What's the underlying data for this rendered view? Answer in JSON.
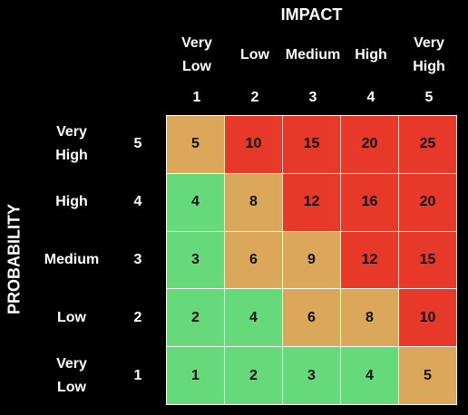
{
  "impact_title": "IMPACT",
  "probability_title": "PROBABILITY",
  "columns": [
    {
      "label": "Very\nLow",
      "num": "1"
    },
    {
      "label": "Low",
      "num": "2"
    },
    {
      "label": "Medium",
      "num": "3"
    },
    {
      "label": "High",
      "num": "4"
    },
    {
      "label": "Very\nHigh",
      "num": "5"
    }
  ],
  "rows": [
    {
      "label": "Very\nHigh",
      "num": "5"
    },
    {
      "label": "High",
      "num": "4"
    },
    {
      "label": "Medium",
      "num": "3"
    },
    {
      "label": "Low",
      "num": "2"
    },
    {
      "label": "Very\nLow",
      "num": "1"
    }
  ],
  "colors": {
    "low": "#66d97a",
    "medium": "#dba75a",
    "high": "#e8382a"
  },
  "matrix": [
    [
      {
        "v": "5",
        "level": "medium"
      },
      {
        "v": "10",
        "level": "high"
      },
      {
        "v": "15",
        "level": "high"
      },
      {
        "v": "20",
        "level": "high"
      },
      {
        "v": "25",
        "level": "high"
      }
    ],
    [
      {
        "v": "4",
        "level": "low"
      },
      {
        "v": "8",
        "level": "medium"
      },
      {
        "v": "12",
        "level": "high"
      },
      {
        "v": "16",
        "level": "high"
      },
      {
        "v": "20",
        "level": "high"
      }
    ],
    [
      {
        "v": "3",
        "level": "low"
      },
      {
        "v": "6",
        "level": "medium"
      },
      {
        "v": "9",
        "level": "medium"
      },
      {
        "v": "12",
        "level": "high"
      },
      {
        "v": "15",
        "level": "high"
      }
    ],
    [
      {
        "v": "2",
        "level": "low"
      },
      {
        "v": "4",
        "level": "low"
      },
      {
        "v": "6",
        "level": "medium"
      },
      {
        "v": "8",
        "level": "medium"
      },
      {
        "v": "10",
        "level": "high"
      }
    ],
    [
      {
        "v": "1",
        "level": "low"
      },
      {
        "v": "2",
        "level": "low"
      },
      {
        "v": "3",
        "level": "low"
      },
      {
        "v": "4",
        "level": "low"
      },
      {
        "v": "5",
        "level": "medium"
      }
    ]
  ]
}
